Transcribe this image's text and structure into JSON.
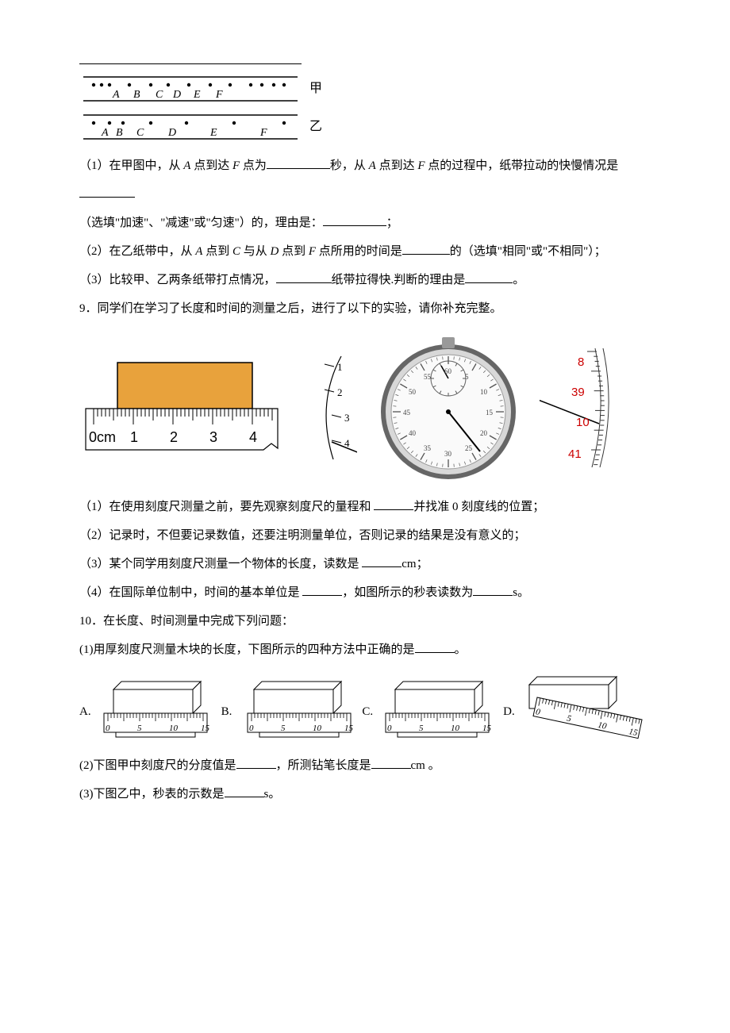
{
  "tape": {
    "labelA": "甲",
    "labelB": "乙",
    "pointLabels": [
      "A",
      "B",
      "C",
      "D",
      "E",
      "F"
    ],
    "jia": {
      "dots": [
        18,
        28,
        38,
        63,
        90,
        112,
        138,
        165,
        190,
        216,
        230,
        245,
        258
      ],
      "letterX": [
        42,
        68,
        96,
        118,
        144,
        172
      ]
    },
    "yi": {
      "dots": [
        18,
        38,
        55,
        90,
        135,
        195,
        258
      ],
      "letterX": [
        28,
        46,
        72,
        112,
        165,
        228
      ]
    }
  },
  "q8": {
    "part1_a": "（1）在甲图中，从 ",
    "part1_b": " 点到达 ",
    "part1_c": " 点为",
    "part1_d": "秒，从 ",
    "part1_e": " 点到达 ",
    "part1_f": " 点的过程中，纸带拉动的快慢情况是",
    "part1_hint": "（选填\"加速\"、\"减速\"或\"匀速\"）的，理由是：",
    "part1_end": "；",
    "part2_a": "（2）在乙纸带中，从 ",
    "part2_b": " 点到 ",
    "part2_c": " 与从 ",
    "part2_d": " 点到 ",
    "part2_e": " 点所用的时间是",
    "part2_f": "的（选填\"相同\"或\"不相同\"）；",
    "part3_a": "（3）比较甲、乙两条纸带打点情况，",
    "part3_b": "纸带拉得快.判断的理由是",
    "part3_end": "。",
    "A": "A",
    "C": "C",
    "D": "D",
    "F": "F"
  },
  "q9": {
    "stem": "9．同学们在学习了长度和时间的测量之后，进行了以下的实验，请你补充完整。",
    "p1_a": "（1）在使用刻度尺测量之前，要先观察刻度尺的量程和 ",
    "p1_b": "并找准 0 刻度线的位置；",
    "p2": "（2）记录时，不但要记录数值，还要注明测量单位，否则记录的结果是没有意义的；",
    "p3_a": "（3）某个同学用刻度尺测量一个物体的长度，读数是 ",
    "p3_b": "cm；",
    "p4_a": "（4）在国际单位制中，时间的基本单位是 ",
    "p4_b": "，如图所示的秒表读数为",
    "p4_c": "s。",
    "rulerLabels": [
      "0cm",
      "1",
      "2",
      "3",
      "4"
    ],
    "stopwatch_side": [
      "1",
      "2",
      "3",
      "4"
    ],
    "vernier_red": [
      "8",
      "39",
      "10",
      "41"
    ],
    "block_color": "#e8a23c"
  },
  "q10": {
    "stem": "10．在长度、时间测量中完成下列问题：",
    "p1": "(1)用厚刻度尺测量木块的长度，下图所示的四种方法中正确的是",
    "p1_end": "。",
    "optA": "A.",
    "optB": "B.",
    "optC": "C.",
    "optD": "D.",
    "tickLabels": [
      "0",
      "5",
      "10",
      "15"
    ],
    "p2_a": "(2)下图甲中刻度尺的分度值是",
    "p2_b": "，所测钻笔长度是",
    "p2_c": "cm 。",
    "p3_a": "(3)下图乙中，秒表的示数是",
    "p3_b": "s。"
  }
}
